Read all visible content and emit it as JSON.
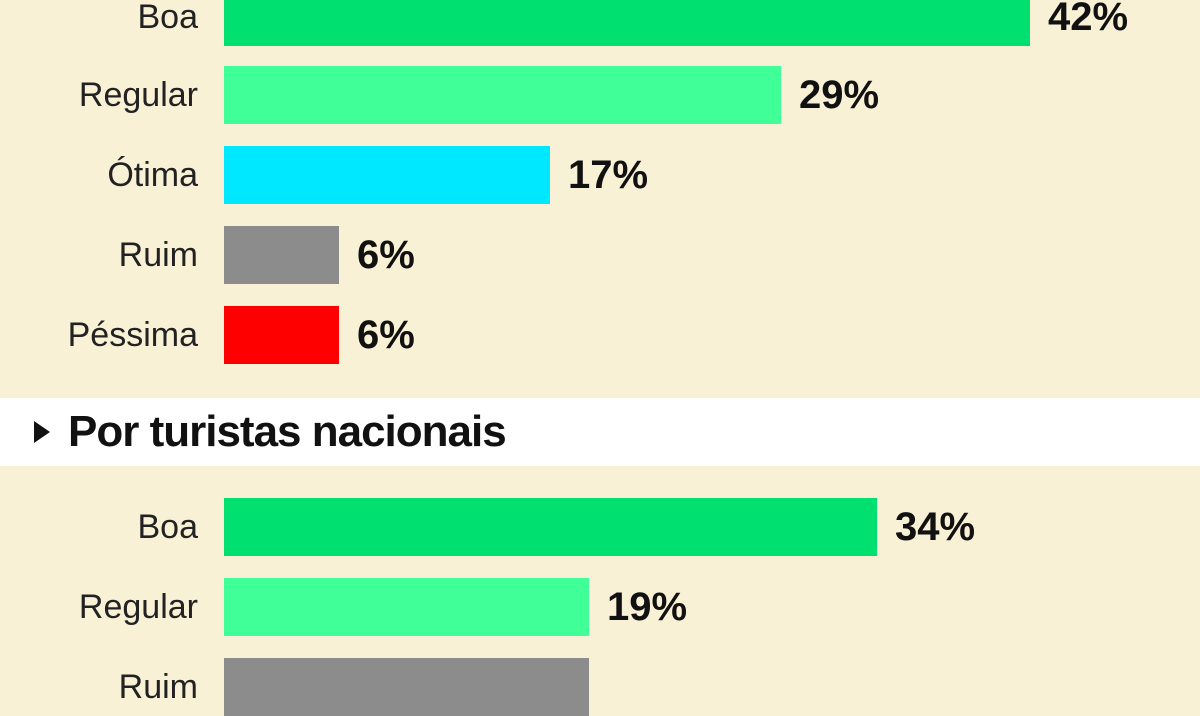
{
  "chart_data": [
    {
      "type": "bar",
      "orientation": "horizontal",
      "categories": [
        "Boa",
        "Regular",
        "Ótima",
        "Ruim",
        "Péssima"
      ],
      "values": [
        42,
        29,
        17,
        6,
        6
      ],
      "value_labels": [
        "42%",
        "29%",
        "17%",
        "6%",
        "6%"
      ],
      "colors": [
        "#00e070",
        "#40ff98",
        "#00e8ff",
        "#8c8c8c",
        "#ff0000"
      ],
      "unit": "%"
    },
    {
      "type": "bar",
      "orientation": "horizontal",
      "title": "Por turistas nacionais",
      "categories": [
        "Boa",
        "Regular",
        "Ruim"
      ],
      "values": [
        34,
        19,
        19
      ],
      "value_labels": [
        "34%",
        "19%",
        ""
      ],
      "colors": [
        "#00e070",
        "#40ff98",
        "#8c8c8c"
      ],
      "unit": "%"
    }
  ]
}
